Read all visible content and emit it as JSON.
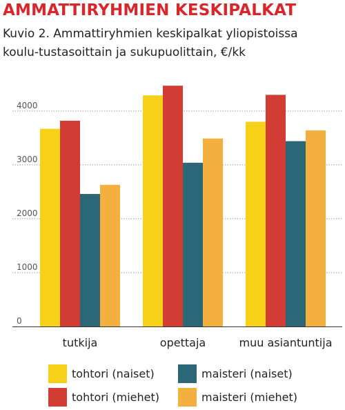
{
  "header": {
    "title": "AMMATTIRYHMIEN KESKIPALKAT",
    "subtitle": "Kuvio 2. Ammattiryhmien keskipalkat yliopistoissa koulu-tustasoittain ja sukupuolittain, €/kk"
  },
  "colors": {
    "title": "#d9262b"
  },
  "chart_data": {
    "type": "bar",
    "categories": [
      "tutkija",
      "opettaja",
      "muu asiantuntija"
    ],
    "series": [
      {
        "name": "tohtori (naiset)",
        "color": "#f7d117",
        "values": [
          3670,
          4290,
          3800
        ]
      },
      {
        "name": "tohtori (miehet)",
        "color": "#d13c35",
        "values": [
          3820,
          4470,
          4300
        ]
      },
      {
        "name": "maisteri (naiset)",
        "color": "#2b6776",
        "values": [
          2460,
          3040,
          3440
        ]
      },
      {
        "name": "maisteri (miehet)",
        "color": "#f3b03e",
        "values": [
          2630,
          3490,
          3640
        ]
      }
    ],
    "yticks": [
      0,
      1000,
      2000,
      3000,
      4000
    ],
    "ytick_labels": [
      "0",
      "1000",
      "2000",
      "3000",
      "4000"
    ],
    "ylim": [
      0,
      4600
    ],
    "xlabel": "",
    "ylabel": "",
    "grid": true,
    "legend": "bottom"
  }
}
